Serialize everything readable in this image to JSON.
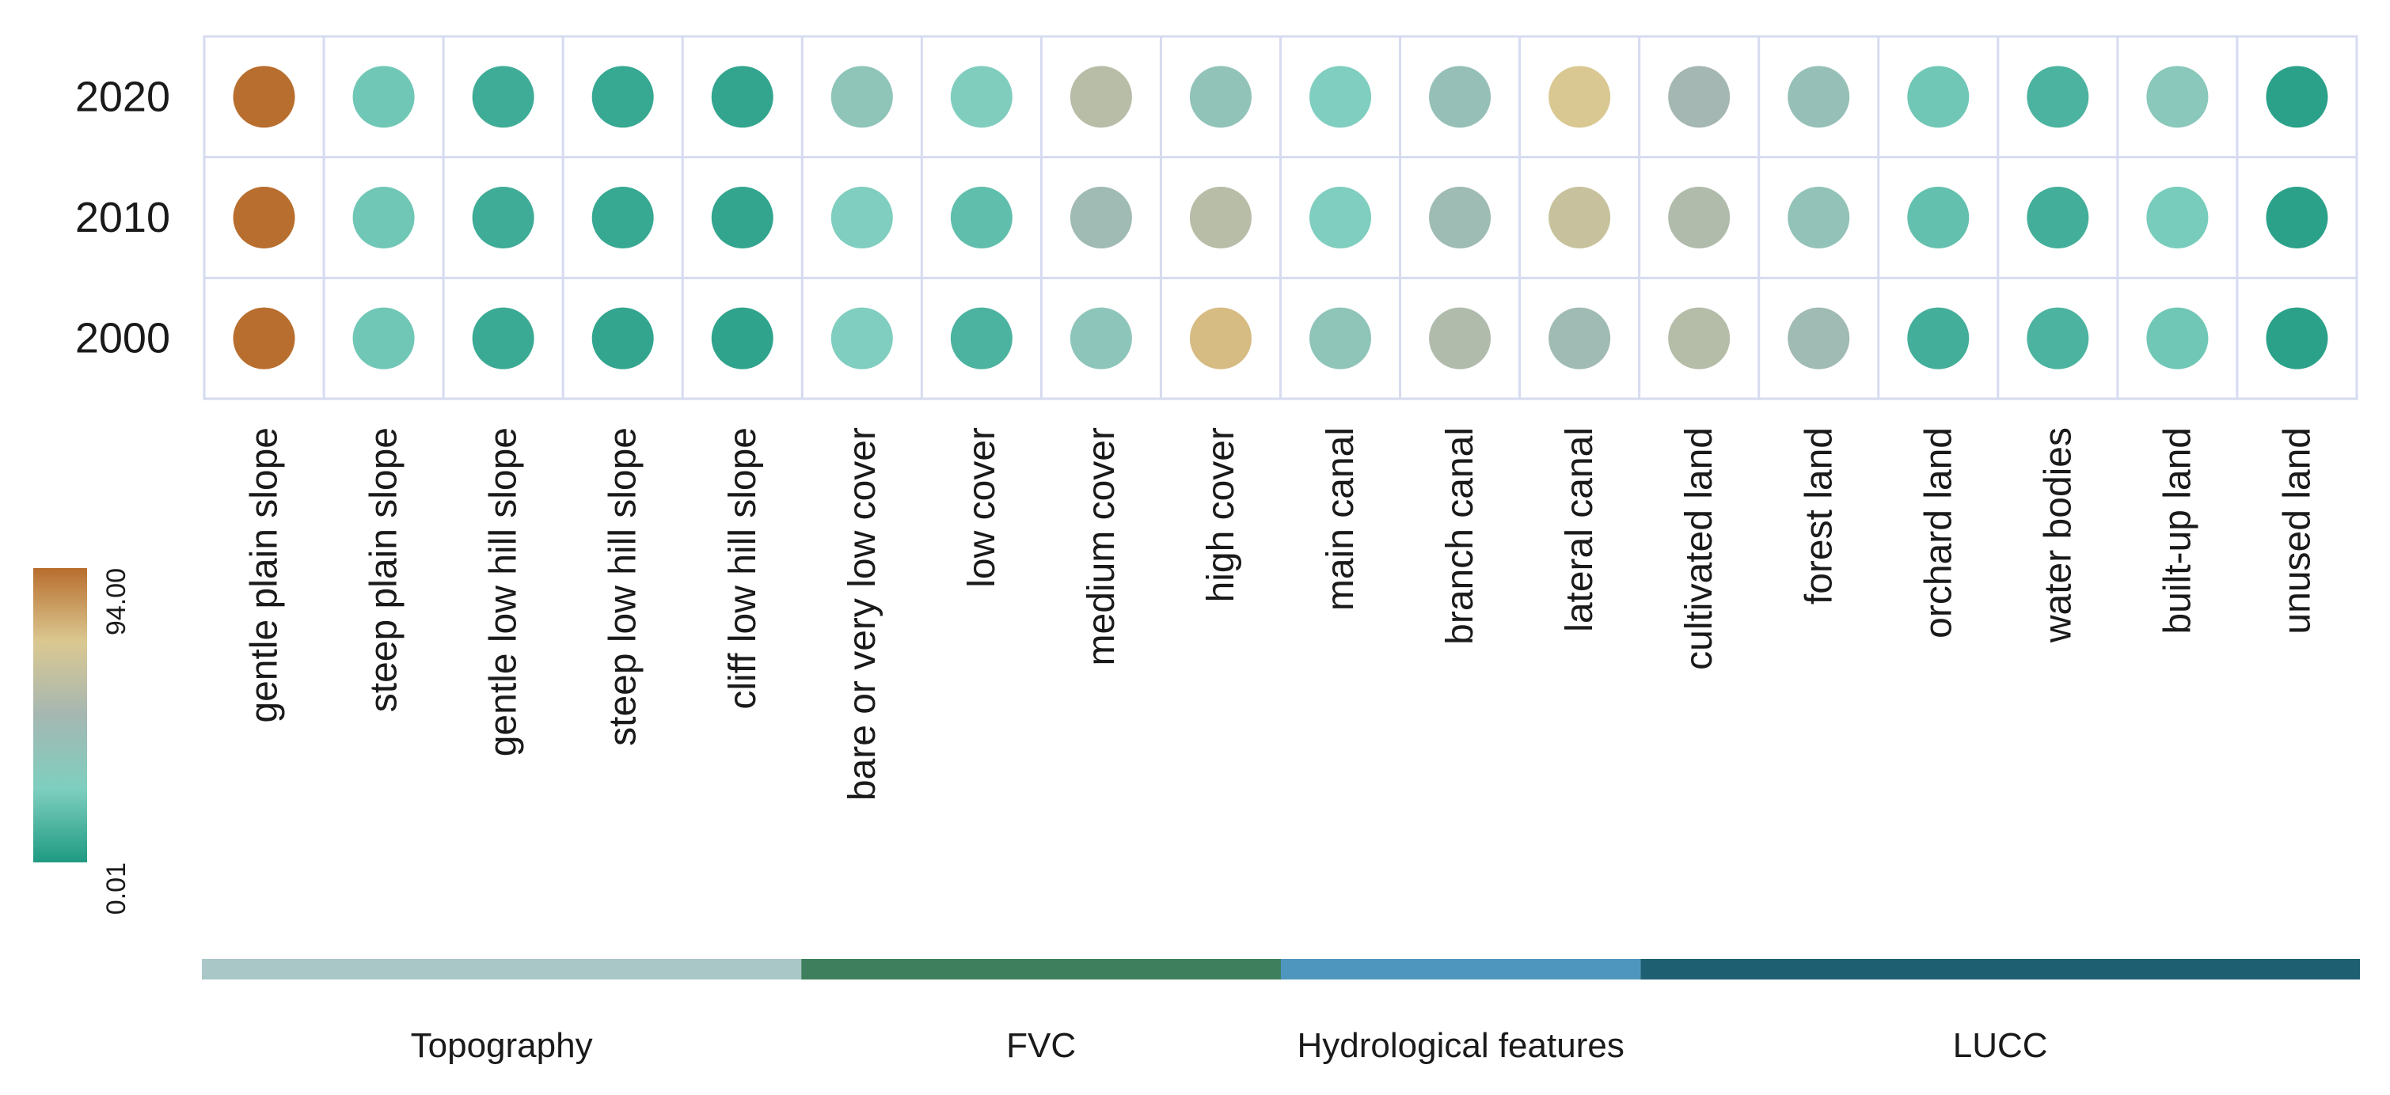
{
  "chart_data": {
    "type": "heatmap",
    "marker": "circle",
    "rows": [
      "2020",
      "2010",
      "2000"
    ],
    "columns": [
      "gentle plain slope",
      "steep plain slope",
      "gentle low hill slope",
      "steep low hill slope",
      "cliff low hill slope",
      "bare or very low cover",
      "low cover",
      "medium cover",
      "high cover",
      "main canal",
      "branch canal",
      "lateral canal",
      "cultivated land",
      "forest land",
      "orchard land",
      "water bodies",
      "built-up land",
      "unused land"
    ],
    "values": [
      [
        94.0,
        20.0,
        8.0,
        6.0,
        5.0,
        34.0,
        25.0,
        55.0,
        35.0,
        24.0,
        38.0,
        70.0,
        47.0,
        38.0,
        20.0,
        11.0,
        30.0,
        3.0
      ],
      [
        94.0,
        20.0,
        8.0,
        6.0,
        5.0,
        24.0,
        16.0,
        44.0,
        55.0,
        24.0,
        43.0,
        62.0,
        52.0,
        36.0,
        17.0,
        9.0,
        22.0,
        3.0
      ],
      [
        94.0,
        20.0,
        7.0,
        5.0,
        4.0,
        24.0,
        11.0,
        33.0,
        74.0,
        34.0,
        52.0,
        44.0,
        54.0,
        44.0,
        9.0,
        11.0,
        20.0,
        3.0
      ]
    ],
    "colorbar": {
      "min_label": "0.01",
      "max_label": "94.00",
      "min": 0.01,
      "max": 94.0,
      "stops": [
        "#1f9a82",
        "#7ecfbf",
        "#a5b7b2",
        "#dbc891",
        "#b86e2e"
      ]
    },
    "groups": [
      {
        "label": "Topography",
        "start": 0,
        "end": 4,
        "color": "#a8c7c6"
      },
      {
        "label": "FVC",
        "start": 5,
        "end": 8,
        "color": "#3e7f5e"
      },
      {
        "label": "Hydrological features",
        "start": 9,
        "end": 11,
        "color": "#4f96bf"
      },
      {
        "label": "LUCC",
        "start": 12,
        "end": 17,
        "color": "#1e5f72"
      }
    ]
  }
}
